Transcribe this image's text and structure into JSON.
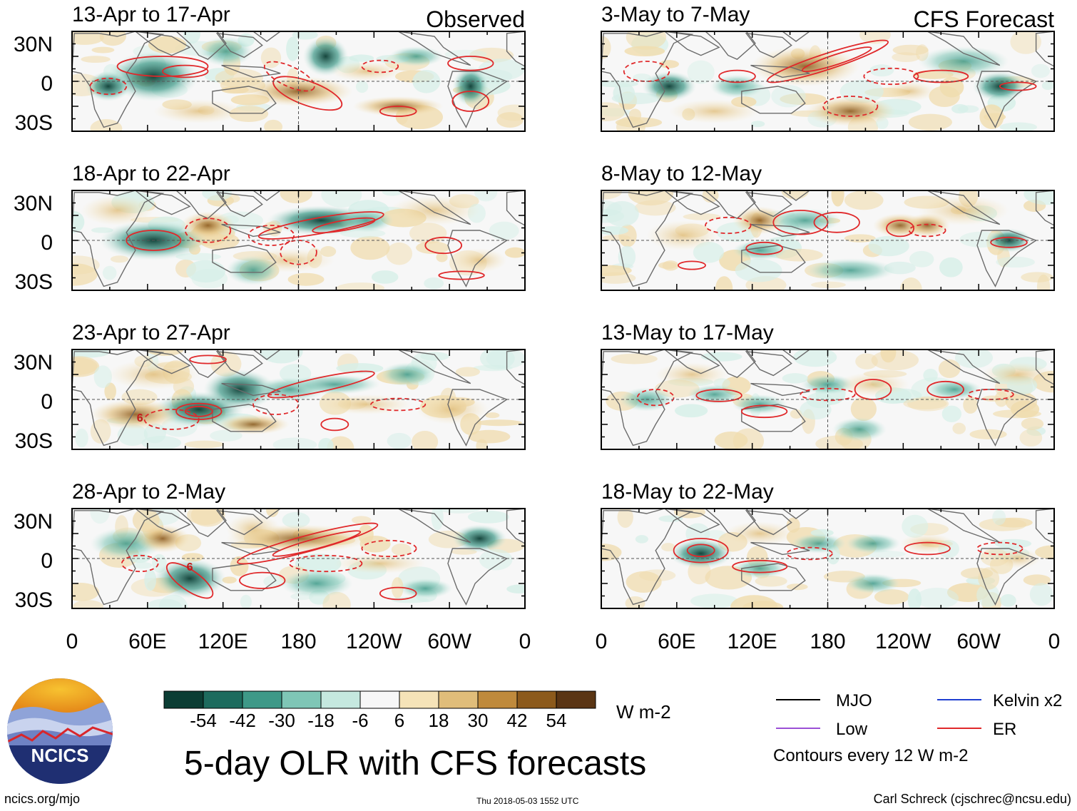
{
  "figure": {
    "title": "5-day OLR with CFS forecasts",
    "credit_url": "ncics.org/mjo",
    "timestamp": "Thu 2018-05-03 1552 UTC",
    "author": "Carl Schreck (cjschrec@ncsu.edu)",
    "logo_text": "NCICS"
  },
  "chart_data": {
    "type": "heatmap",
    "variable": "OLR anomaly",
    "units": "W m-2",
    "x_ticks": [
      "0",
      "60E",
      "120E",
      "180",
      "120W",
      "60W",
      "0"
    ],
    "y_ticks": [
      "30N",
      "0",
      "30S"
    ],
    "columns": [
      {
        "header": "Observed",
        "panels": [
          {
            "label": "13-Apr to 17-Apr"
          },
          {
            "label": "18-Apr to 22-Apr"
          },
          {
            "label": "23-Apr to 27-Apr"
          },
          {
            "label": "28-Apr to 2-May"
          }
        ]
      },
      {
        "header": "CFS Forecast",
        "panels": [
          {
            "label": "3-May to 7-May"
          },
          {
            "label": "8-May to 12-May"
          },
          {
            "label": "13-May to 17-May"
          },
          {
            "label": "18-May to 22-May"
          }
        ]
      }
    ],
    "colorbar": {
      "ticks": [
        "-54",
        "-42",
        "-30",
        "-18",
        "-6",
        "6",
        "18",
        "30",
        "42",
        "54"
      ],
      "colors": [
        "#0b3d34",
        "#1d6b5e",
        "#3e9988",
        "#7fc6b6",
        "#c5e8df",
        "#f7f7f7",
        "#f5e3b8",
        "#e0bd7a",
        "#bf8a3c",
        "#8c5a1c",
        "#5a3514"
      ]
    },
    "legend": [
      {
        "label": "MJO",
        "color": "#000000"
      },
      {
        "label": "Kelvin x2",
        "color": "#1f3fd1"
      },
      {
        "label": "Low",
        "color": "#9b4fd6"
      },
      {
        "label": "ER",
        "color": "#e0282a"
      }
    ],
    "contour_note": "Contours every 12 W m-2",
    "storm_symbol": "6"
  }
}
